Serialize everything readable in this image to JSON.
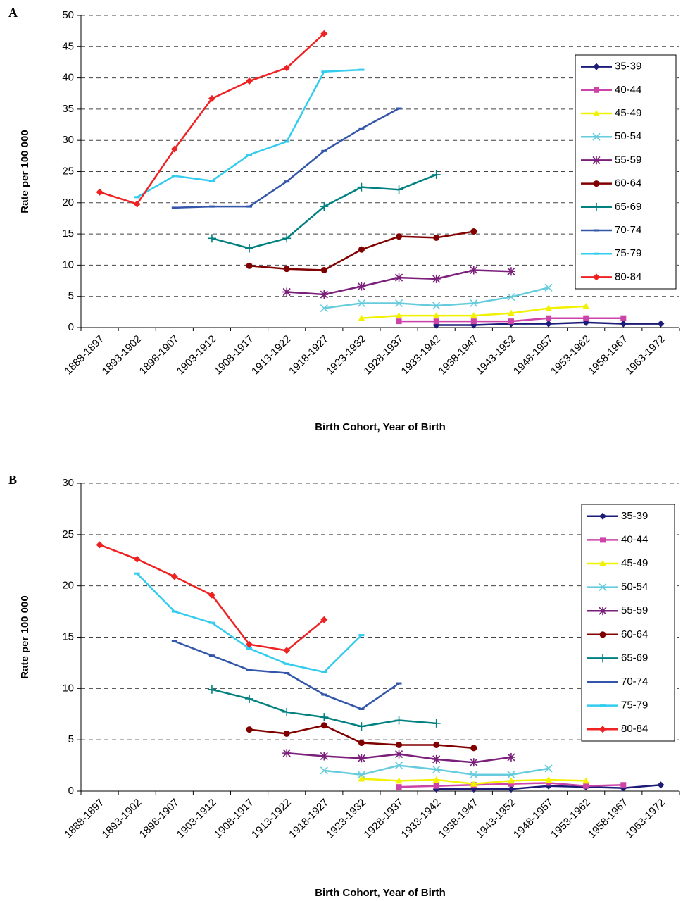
{
  "chart_data": [
    {
      "type": "line",
      "panel": "A",
      "x_label": "Birth Cohort, Year of Birth",
      "y_label": "Rate per 100 000",
      "categories": [
        "1888-1897",
        "1893-1902",
        "1898-1907",
        "1903-1912",
        "1908-1917",
        "1913-1922",
        "1918-1927",
        "1923-1932",
        "1928-1937",
        "1933-1942",
        "1938-1947",
        "1943-1952",
        "1948-1957",
        "1953-1962",
        "1958-1967",
        "1963-1972"
      ],
      "ylim": [
        0,
        50
      ],
      "yticks": [
        0,
        5,
        10,
        15,
        20,
        25,
        30,
        35,
        40,
        45,
        50
      ],
      "grid": true,
      "legend": "right",
      "series": [
        {
          "name": "35-39",
          "color": "#1c1c78",
          "marker": "diamond",
          "values": [
            null,
            null,
            null,
            null,
            null,
            null,
            null,
            null,
            null,
            0.4,
            0.4,
            0.6,
            0.6,
            0.8,
            0.6,
            0.6
          ]
        },
        {
          "name": "40-44",
          "color": "#cc44aa",
          "marker": "square",
          "values": [
            null,
            null,
            null,
            null,
            null,
            null,
            null,
            null,
            1.0,
            1.0,
            1.0,
            1.0,
            1.5,
            1.5,
            1.5,
            null
          ]
        },
        {
          "name": "45-49",
          "color": "#f2f200",
          "marker": "triangle",
          "values": [
            null,
            null,
            null,
            null,
            null,
            null,
            null,
            1.5,
            1.9,
            1.9,
            1.9,
            2.3,
            3.1,
            3.4,
            null,
            null
          ]
        },
        {
          "name": "50-54",
          "color": "#66ccdd",
          "marker": "x",
          "values": [
            null,
            null,
            null,
            null,
            null,
            null,
            3.1,
            3.9,
            3.9,
            3.5,
            3.9,
            4.9,
            6.4,
            null,
            null,
            null
          ]
        },
        {
          "name": "55-59",
          "color": "#7a1f7a",
          "marker": "star",
          "values": [
            null,
            null,
            null,
            null,
            null,
            5.7,
            5.3,
            6.6,
            8.0,
            7.8,
            9.2,
            9.0,
            null,
            null,
            null,
            null
          ]
        },
        {
          "name": "60-64",
          "color": "#800000",
          "marker": "circle",
          "values": [
            null,
            null,
            null,
            null,
            9.9,
            9.4,
            9.2,
            12.5,
            14.6,
            14.4,
            15.4,
            null,
            null,
            null,
            null,
            null
          ]
        },
        {
          "name": "65-69",
          "color": "#008080",
          "marker": "plus",
          "values": [
            null,
            null,
            null,
            14.3,
            12.7,
            14.3,
            19.4,
            22.5,
            22.1,
            24.5,
            null,
            null,
            null,
            null,
            null,
            null
          ]
        },
        {
          "name": "70-74",
          "color": "#3355aa",
          "marker": "dash",
          "values": [
            null,
            null,
            19.2,
            19.4,
            19.4,
            23.4,
            28.3,
            31.9,
            35.1,
            null,
            null,
            null,
            null,
            null,
            null,
            null
          ]
        },
        {
          "name": "75-79",
          "color": "#33ccee",
          "marker": "dash",
          "values": [
            null,
            20.9,
            24.3,
            23.5,
            27.7,
            29.8,
            41.0,
            41.3,
            null,
            null,
            null,
            null,
            null,
            null,
            null,
            null
          ]
        },
        {
          "name": "80-84",
          "color": "#ee2222",
          "marker": "diamond",
          "values": [
            21.7,
            19.8,
            28.6,
            36.7,
            39.5,
            41.6,
            47.1,
            null,
            null,
            null,
            null,
            null,
            null,
            null,
            null,
            null
          ]
        }
      ]
    },
    {
      "type": "line",
      "panel": "B",
      "x_label": "Birth Cohort, Year of Birth",
      "y_label": "Rate per 100 000",
      "categories": [
        "1888-1897",
        "1893-1902",
        "1898-1907",
        "1903-1912",
        "1908-1917",
        "1913-1922",
        "1918-1927",
        "1923-1932",
        "1928-1937",
        "1933-1942",
        "1938-1947",
        "1943-1952",
        "1948-1957",
        "1953-1962",
        "1958-1967",
        "1963-1972"
      ],
      "ylim": [
        0,
        30
      ],
      "yticks": [
        0,
        5,
        10,
        15,
        20,
        25,
        30
      ],
      "grid": true,
      "legend": "right",
      "series": [
        {
          "name": "35-39",
          "color": "#1c1c78",
          "marker": "diamond",
          "values": [
            null,
            null,
            null,
            null,
            null,
            null,
            null,
            null,
            null,
            0.2,
            0.2,
            0.2,
            0.5,
            0.4,
            0.3,
            0.6
          ]
        },
        {
          "name": "40-44",
          "color": "#cc44aa",
          "marker": "square",
          "values": [
            null,
            null,
            null,
            null,
            null,
            null,
            null,
            null,
            0.4,
            0.5,
            0.6,
            0.7,
            0.8,
            0.5,
            0.6,
            null
          ]
        },
        {
          "name": "45-49",
          "color": "#f2f200",
          "marker": "triangle",
          "values": [
            null,
            null,
            null,
            null,
            null,
            null,
            null,
            1.2,
            1.0,
            1.1,
            0.7,
            1.0,
            1.1,
            1.0,
            null,
            null
          ]
        },
        {
          "name": "50-54",
          "color": "#66ccdd",
          "marker": "x",
          "values": [
            null,
            null,
            null,
            null,
            null,
            null,
            2.0,
            1.6,
            2.5,
            2.1,
            1.6,
            1.6,
            2.2,
            null,
            null,
            null
          ]
        },
        {
          "name": "55-59",
          "color": "#7a1f7a",
          "marker": "star",
          "values": [
            null,
            null,
            null,
            null,
            null,
            3.7,
            3.4,
            3.2,
            3.6,
            3.1,
            2.8,
            3.3,
            null,
            null,
            null,
            null
          ]
        },
        {
          "name": "60-64",
          "color": "#800000",
          "marker": "circle",
          "values": [
            null,
            null,
            null,
            null,
            6.0,
            5.6,
            6.4,
            4.7,
            4.5,
            4.5,
            4.2,
            null,
            null,
            null,
            null,
            null
          ]
        },
        {
          "name": "65-69",
          "color": "#008080",
          "marker": "plus",
          "values": [
            null,
            null,
            null,
            9.9,
            9.0,
            7.7,
            7.2,
            6.3,
            6.9,
            6.6,
            null,
            null,
            null,
            null,
            null,
            null
          ]
        },
        {
          "name": "70-74",
          "color": "#3355aa",
          "marker": "dash",
          "values": [
            null,
            null,
            14.6,
            13.2,
            11.8,
            11.5,
            9.4,
            8.0,
            10.5,
            null,
            null,
            null,
            null,
            null,
            null,
            null
          ]
        },
        {
          "name": "75-79",
          "color": "#33ccee",
          "marker": "dash",
          "values": [
            null,
            21.2,
            17.5,
            16.4,
            13.9,
            12.4,
            11.6,
            15.2,
            null,
            null,
            null,
            null,
            null,
            null,
            null,
            null
          ]
        },
        {
          "name": "80-84",
          "color": "#ee2222",
          "marker": "diamond",
          "values": [
            24.0,
            22.6,
            20.9,
            19.1,
            14.3,
            13.7,
            16.7,
            null,
            null,
            null,
            null,
            null,
            null,
            null,
            null,
            null
          ]
        }
      ]
    }
  ]
}
